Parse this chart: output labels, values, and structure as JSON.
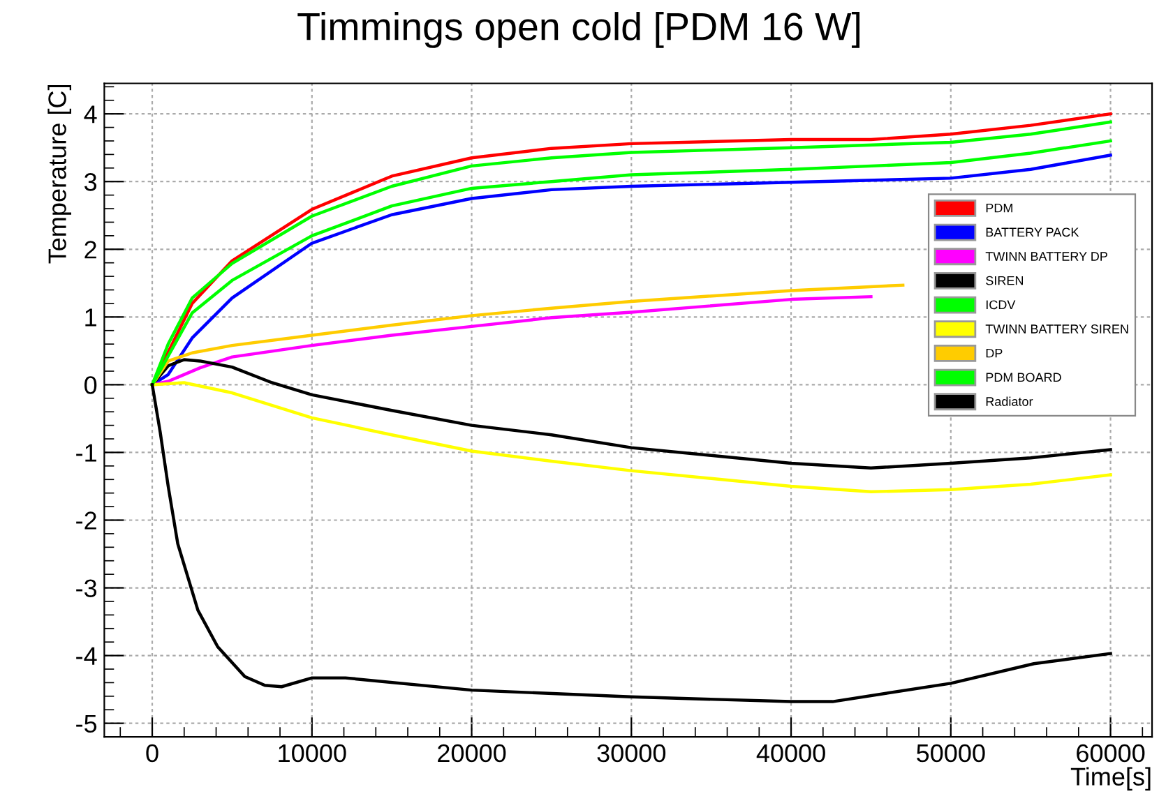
{
  "chart_data": {
    "type": "line",
    "title": "Timmings open cold [PDM 16 W]",
    "xlabel": "Time[s]",
    "ylabel": "Temperature [C]",
    "xlim": [
      -3000,
      62600
    ],
    "ylim": [
      -5.2,
      4.45
    ],
    "xticks": [
      0,
      10000,
      20000,
      30000,
      40000,
      50000,
      60000
    ],
    "yticks": [
      -5,
      -4,
      -3,
      -2,
      -1,
      0,
      1,
      2,
      3,
      4
    ],
    "grid": true,
    "legend": "top right",
    "marker": "none",
    "line_style": "solid",
    "series": [
      {
        "name": "PDM",
        "color": "#ff0000",
        "x": [
          0,
          2500,
          5000,
          10000,
          15000,
          20000,
          25000,
          30000,
          40000,
          45000,
          50000,
          55000,
          60000
        ],
        "values": [
          0,
          1.2,
          1.83,
          2.59,
          3.08,
          3.35,
          3.49,
          3.56,
          3.62,
          3.62,
          3.7,
          3.83,
          4.0
        ]
      },
      {
        "name": "BATTERY PACK",
        "color": "#0000ff",
        "x": [
          0,
          1000,
          2500,
          5000,
          10000,
          15000,
          20000,
          25000,
          30000,
          40000,
          50000,
          55000,
          60000
        ],
        "values": [
          0,
          0.15,
          0.69,
          1.28,
          2.09,
          2.51,
          2.75,
          2.88,
          2.93,
          2.99,
          3.05,
          3.18,
          3.39
        ]
      },
      {
        "name": "TWINN BATTERY DP",
        "color": "#ff00ff",
        "x": [
          0,
          1000,
          3000,
          5000,
          10000,
          15000,
          20000,
          25000,
          30000,
          40000,
          45000
        ],
        "values": [
          0,
          0.05,
          0.25,
          0.41,
          0.58,
          0.73,
          0.86,
          0.99,
          1.07,
          1.26,
          1.3
        ]
      },
      {
        "name": "SIREN",
        "color": "#000000",
        "x": [
          0,
          1000,
          2000,
          3000,
          5000,
          7500,
          10000,
          15000,
          20000,
          25000,
          30000,
          40000,
          45000,
          50000,
          55000,
          60000
        ],
        "values": [
          0,
          0.28,
          0.37,
          0.35,
          0.26,
          0.03,
          -0.15,
          -0.38,
          -0.6,
          -0.74,
          -0.93,
          -1.16,
          -1.23,
          -1.16,
          -1.08,
          -0.96
        ]
      },
      {
        "name": "ICDV",
        "color": "#00ff00",
        "x": [
          0,
          1000,
          2500,
          5000,
          10000,
          15000,
          20000,
          25000,
          30000,
          40000,
          50000,
          55000,
          60000
        ],
        "values": [
          0,
          0.6,
          1.28,
          1.79,
          2.49,
          2.93,
          3.23,
          3.35,
          3.43,
          3.5,
          3.58,
          3.7,
          3.88
        ]
      },
      {
        "name": "TWINN BATTERY SIREN",
        "color": "#ffff00",
        "x": [
          0,
          2000,
          5000,
          10000,
          15000,
          20000,
          25000,
          30000,
          40000,
          45000,
          50000,
          55000,
          60000
        ],
        "values": [
          0,
          0.03,
          -0.12,
          -0.49,
          -0.74,
          -0.98,
          -1.13,
          -1.27,
          -1.5,
          -1.58,
          -1.55,
          -1.47,
          -1.33
        ]
      },
      {
        "name": "DP",
        "color": "#ffcc00",
        "x": [
          0,
          1000,
          2500,
          5000,
          10000,
          15000,
          20000,
          25000,
          30000,
          40000,
          47000
        ],
        "values": [
          0,
          0.35,
          0.47,
          0.58,
          0.73,
          0.88,
          1.02,
          1.13,
          1.23,
          1.39,
          1.47
        ]
      },
      {
        "name": "PDM BOARD",
        "color": "#00ff00",
        "x": [
          0,
          2500,
          5000,
          10000,
          15000,
          20000,
          25000,
          30000,
          40000,
          50000,
          55000,
          60000
        ],
        "values": [
          0,
          1.06,
          1.54,
          2.2,
          2.64,
          2.9,
          3.0,
          3.1,
          3.18,
          3.28,
          3.42,
          3.6
        ]
      },
      {
        "name": "Radiator",
        "color": "#000000",
        "x": [
          0,
          500,
          1000,
          1600,
          2860,
          4100,
          5800,
          7050,
          8100,
          10000,
          12100,
          20000,
          30000,
          40000,
          42600,
          50000,
          55200,
          60000
        ],
        "values": [
          0,
          -0.7,
          -1.5,
          -2.35,
          -3.33,
          -3.87,
          -4.31,
          -4.44,
          -4.46,
          -4.33,
          -4.33,
          -4.51,
          -4.61,
          -4.68,
          -4.68,
          -4.41,
          -4.12,
          -3.97
        ]
      }
    ]
  }
}
